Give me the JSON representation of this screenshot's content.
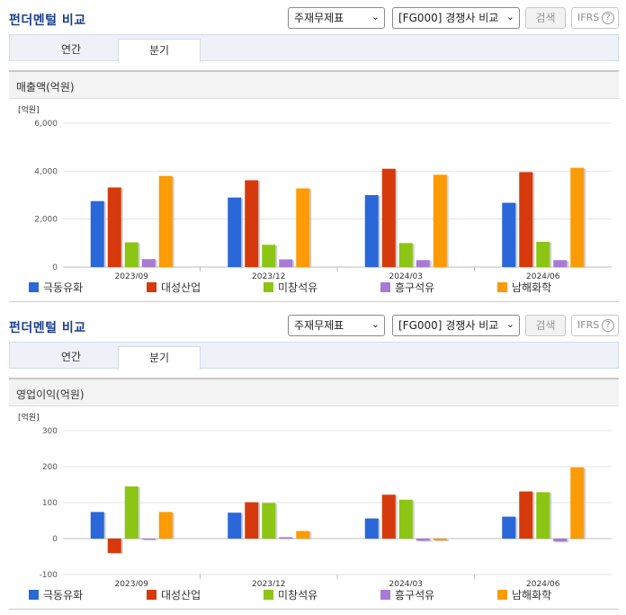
{
  "colors": {
    "series": [
      "#2a67d8",
      "#d63a0c",
      "#8cc514",
      "#a87ad6",
      "#fb9b06"
    ],
    "title": "#1d3f8c"
  },
  "panels": [
    {
      "title": "펀더멘털 비교",
      "select_statement": "주재무제표",
      "select_compare": "[FG000] 경쟁사 비교",
      "search_label": "검색",
      "ifrs_label": "IFRS",
      "help_icon": "question-circle-icon",
      "tabs": [
        "연간",
        "분기"
      ],
      "active_tab": "분기",
      "section_title": "매출액(억원)"
    },
    {
      "title": "펀더멘털 비교",
      "select_statement": "주재무제표",
      "select_compare": "[FG000] 경쟁사 비교",
      "search_label": "검색",
      "ifrs_label": "IFRS",
      "help_icon": "question-circle-icon",
      "tabs": [
        "연간",
        "분기"
      ],
      "active_tab": "분기",
      "section_title": "영업이익(억원)"
    }
  ],
  "chart_data": [
    {
      "type": "bar",
      "unit_label": "[억원]",
      "categories": [
        "2023/09",
        "2023/12",
        "2024/03",
        "2024/06"
      ],
      "ylim": [
        0,
        6000
      ],
      "yticks": [
        0,
        2000,
        4000,
        6000
      ],
      "ytick_labels": [
        "0",
        "2,000",
        "4,000",
        "6,000"
      ],
      "grid": true,
      "legend_position": "bottom",
      "series": [
        {
          "name": "극동유화",
          "values": [
            2750,
            2900,
            3000,
            2680
          ]
        },
        {
          "name": "대성산업",
          "values": [
            3320,
            3620,
            4100,
            3960
          ]
        },
        {
          "name": "미창석유",
          "values": [
            1030,
            930,
            1000,
            1050
          ]
        },
        {
          "name": "흥구석유",
          "values": [
            330,
            320,
            290,
            290
          ]
        },
        {
          "name": "남해화학",
          "values": [
            3800,
            3280,
            3850,
            4140
          ]
        }
      ]
    },
    {
      "type": "bar",
      "unit_label": "[억원]",
      "categories": [
        "2023/09",
        "2023/12",
        "2024/03",
        "2024/06"
      ],
      "ylim": [
        -100,
        300
      ],
      "yticks": [
        -100,
        0,
        100,
        200,
        300
      ],
      "ytick_labels": [
        "-100",
        "0",
        "100",
        "200",
        "300"
      ],
      "grid": true,
      "legend_position": "bottom",
      "series": [
        {
          "name": "극동유화",
          "values": [
            74,
            72,
            56,
            61
          ]
        },
        {
          "name": "대성산업",
          "values": [
            -40,
            101,
            122,
            131
          ]
        },
        {
          "name": "미창석유",
          "values": [
            145,
            99,
            108,
            129
          ]
        },
        {
          "name": "흥구석유",
          "values": [
            -3,
            4,
            -6,
            -8
          ]
        },
        {
          "name": "남해화학",
          "values": [
            74,
            21,
            -5,
            198
          ]
        }
      ]
    }
  ]
}
